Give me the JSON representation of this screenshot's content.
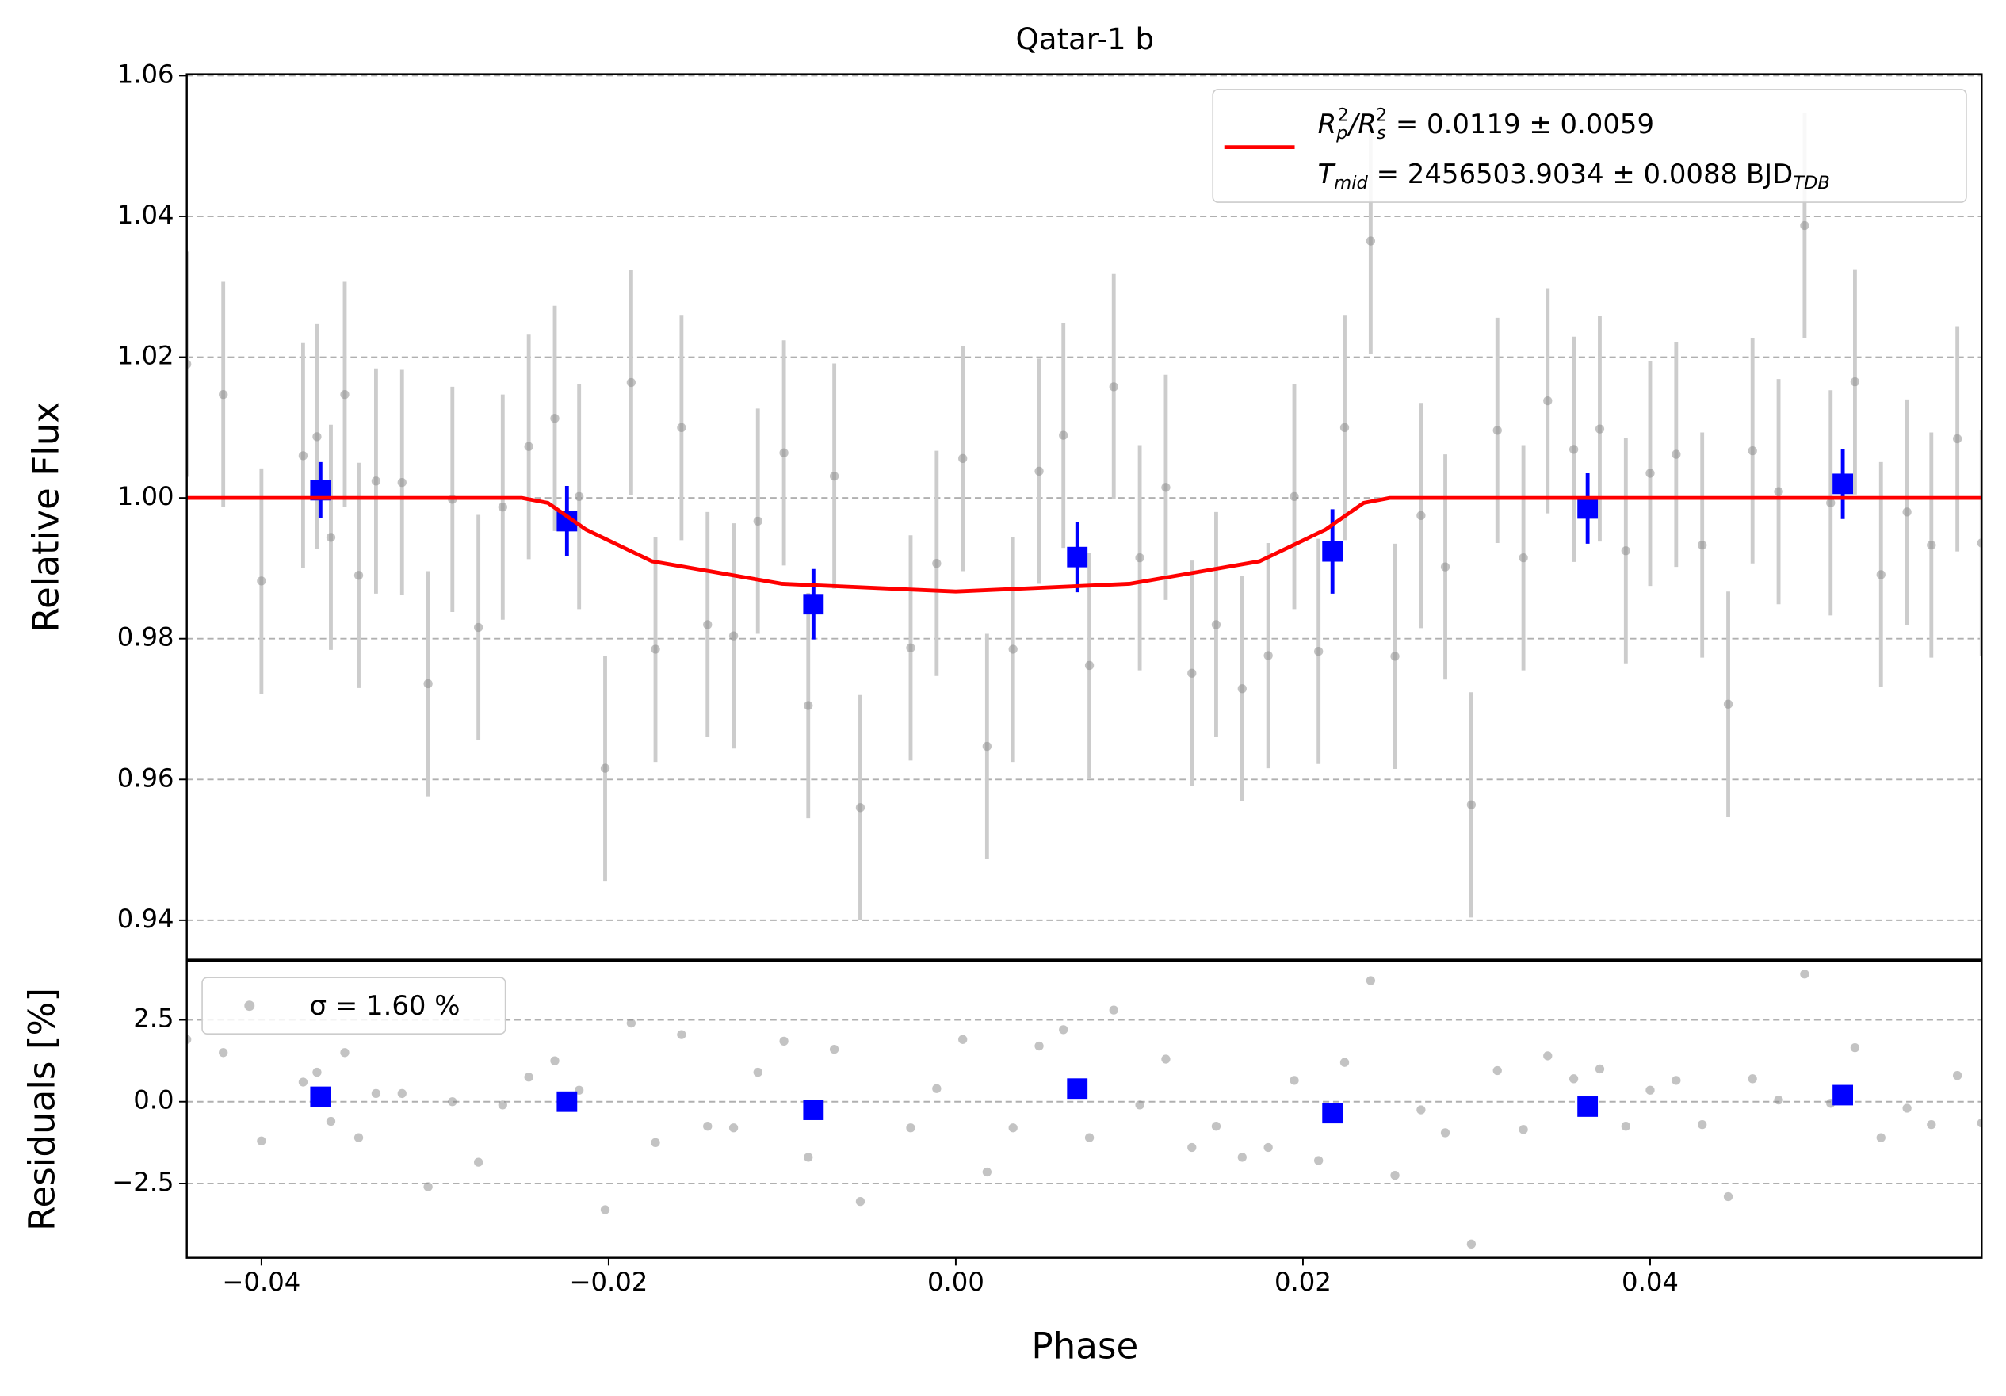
{
  "chart_data": [
    {
      "type": "scatter",
      "title": "Qatar-1 b",
      "ylabel": "Relative Flux",
      "xlim": [
        -0.0443,
        0.0591
      ],
      "ylim": [
        0.9344,
        1.0602
      ],
      "yticks": [
        0.94,
        0.96,
        0.98,
        {
          "value": 1,
          "label": "1.00"
        },
        1.02,
        1.04,
        1.06
      ],
      "grid": true,
      "legend": "upper right",
      "series": [
        {
          "color": "#888888",
          "marker": "circle",
          "error_color": "#cccccc",
          "x": [
            -0.0443,
            -0.0422,
            -0.04,
            -0.0376,
            -0.0368,
            -0.036,
            -0.0352,
            -0.0344,
            -0.0334,
            -0.0319,
            -0.0304,
            -0.029,
            -0.0275,
            -0.0261,
            -0.0246,
            -0.0231,
            -0.0217,
            -0.0202,
            -0.0187,
            -0.0173,
            -0.0158,
            -0.0143,
            -0.0128,
            -0.0114,
            -0.0099,
            -0.0085,
            -0.007,
            -0.0055,
            -0.0026,
            -0.0011,
            0.0004,
            0.0018,
            0.0033,
            0.0048,
            0.0062,
            0.0077,
            0.0091,
            0.0106,
            0.0121,
            0.0136,
            0.015,
            0.0165,
            0.018,
            0.0195,
            0.0209,
            0.0224,
            0.0239,
            0.0253,
            0.0268,
            0.0282,
            0.0297,
            0.0312,
            0.0327,
            0.0341,
            0.0356,
            0.0371,
            0.0386,
            0.04,
            0.0415,
            0.043,
            0.0445,
            0.0459,
            0.0474,
            0.0489,
            0.0504,
            0.0518,
            0.0533,
            0.0548,
            0.0562,
            0.0577,
            0.0591
          ],
          "values": [
            1.019,
            1.0147,
            0.9882,
            1.006,
            1.0087,
            0.9944,
            1.0147,
            0.989,
            1.0024,
            1.0022,
            0.9736,
            0.9998,
            0.9816,
            0.9987,
            1.0073,
            1.0113,
            1.0002,
            0.9616,
            1.0164,
            0.9785,
            1.01,
            0.982,
            0.9804,
            0.9967,
            1.0064,
            0.9705,
            1.0031,
            0.956,
            0.9787,
            0.9907,
            1.0056,
            0.9647,
            0.9785,
            1.0038,
            1.0089,
            0.9762,
            1.0158,
            0.9915,
            1.0015,
            0.9751,
            0.982,
            0.9729,
            0.9776,
            1.0002,
            0.9782,
            1.01,
            1.0365,
            0.9775,
            0.9975,
            0.9902,
            0.9564,
            1.0096,
            0.9915,
            1.0138,
            1.0069,
            1.0098,
            0.9925,
            1.0035,
            1.0062,
            0.9933,
            0.9707,
            1.0067,
            1.0009,
            1.0387,
            0.9993,
            1.0165,
            0.9891,
            0.998,
            0.9933,
            1.0084,
            0.9936
          ],
          "errors": [
            0.016,
            0.016,
            0.016,
            0.016,
            0.016,
            0.016,
            0.016,
            0.016,
            0.016,
            0.016,
            0.016,
            0.016,
            0.016,
            0.016,
            0.016,
            0.016,
            0.016,
            0.016,
            0.016,
            0.016,
            0.016,
            0.016,
            0.016,
            0.016,
            0.016,
            0.016,
            0.016,
            0.016,
            0.016,
            0.016,
            0.016,
            0.016,
            0.016,
            0.016,
            0.016,
            0.016,
            0.016,
            0.016,
            0.016,
            0.016,
            0.016,
            0.016,
            0.016,
            0.016,
            0.016,
            0.016,
            0.016,
            0.016,
            0.016,
            0.016,
            0.016,
            0.016,
            0.016,
            0.016,
            0.016,
            0.016,
            0.016,
            0.016,
            0.016,
            0.016,
            0.016,
            0.016,
            0.016,
            0.016,
            0.016,
            0.016,
            0.016,
            0.016,
            0.016,
            0.016,
            0.016
          ]
        },
        {
          "color": "#0000ff",
          "marker": "square",
          "error_color": "#0000ff",
          "x": [
            -0.0366,
            -0.0224,
            -0.0082,
            0.007,
            0.0217,
            0.0364,
            0.0511
          ],
          "values": [
            1.0011,
            0.9967,
            0.9849,
            0.9916,
            0.9924,
            0.9985,
            1.002
          ],
          "errors": [
            0.004,
            0.005,
            0.005,
            0.005,
            0.006,
            0.005,
            0.005
          ]
        }
      ],
      "model": {
        "color": "#ff0000",
        "x": [
          -0.0443,
          -0.025,
          -0.0235,
          -0.0213,
          -0.0175,
          -0.01,
          0,
          0.01,
          0.0175,
          0.0213,
          0.0235,
          0.025,
          0.0591
        ],
        "values": [
          1,
          1,
          0.9993,
          0.9955,
          0.991,
          0.9878,
          0.9867,
          0.9878,
          0.991,
          0.9955,
          0.9993,
          1,
          1
        ],
        "name_parts": [
          "R",
          "p",
          "2",
          "/R",
          "s",
          "2",
          " = 0.0119 ± 0.0059"
        ],
        "name2_parts": [
          "T",
          "mid",
          " = 2456503.9034 ± 0.0088 BJD",
          "TDB"
        ]
      }
    },
    {
      "type": "scatter",
      "ylabel": "Residuals [%]",
      "xlabel": "Phase",
      "xlim": [
        -0.0443,
        0.0591
      ],
      "ylim": [
        -4.77,
        4.3
      ],
      "xticks": [
        {
          "value": -0.04,
          "label": "−0.04"
        },
        {
          "value": -0.02,
          "label": "−0.02"
        },
        {
          "value": 0,
          "label": "0.00"
        },
        {
          "value": 0.02,
          "label": "0.02"
        },
        {
          "value": 0.04,
          "label": "0.04"
        }
      ],
      "yticks": [
        {
          "value": -2.5,
          "label": "−2.5"
        },
        {
          "value": 0,
          "label": "0.0"
        },
        2.5
      ],
      "grid": true,
      "legend": "upper left",
      "legend_text": "σ = 1.60 %",
      "series": [
        {
          "color": "#888888",
          "marker": "circle",
          "values": [
            1.9,
            1.5,
            -1.2,
            0.6,
            0.9,
            -0.6,
            1.5,
            -1.1,
            0.25,
            0.25,
            -2.6,
            0,
            -1.85,
            -0.1,
            0.75,
            1.25,
            0.35,
            -3.3,
            2.4,
            -1.25,
            2.05,
            -0.75,
            -0.8,
            0.9,
            1.85,
            -1.7,
            1.6,
            -3.05,
            -0.8,
            0.4,
            1.9,
            -2.15,
            -0.8,
            1.7,
            2.2,
            -1.1,
            2.8,
            -0.1,
            1.3,
            -1.4,
            -0.75,
            -1.7,
            -1.4,
            0.65,
            -1.8,
            1.2,
            3.7,
            -2.25,
            -0.25,
            -0.95,
            -4.35,
            0.95,
            -0.85,
            1.4,
            0.7,
            1,
            -0.75,
            0.35,
            0.65,
            -0.7,
            -2.9,
            0.7,
            0.05,
            3.9,
            -0.05,
            1.65,
            -1.1,
            -0.2,
            -0.7,
            0.8,
            -0.65
          ]
        },
        {
          "color": "#0000ff",
          "marker": "square",
          "values": [
            0.15,
            0,
            -0.25,
            0.4,
            -0.35,
            -0.15,
            0.2
          ]
        }
      ]
    }
  ]
}
